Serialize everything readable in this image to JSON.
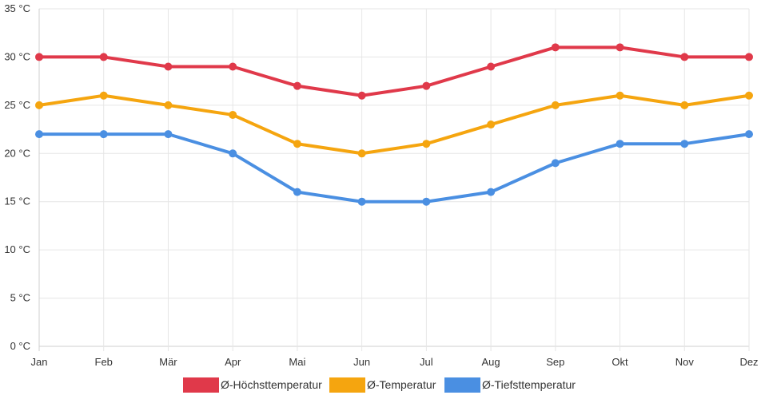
{
  "chart_data": {
    "type": "line",
    "title": "",
    "xlabel": "",
    "ylabel": "",
    "categories": [
      "Jan",
      "Feb",
      "Mär",
      "Apr",
      "Mai",
      "Jun",
      "Jul",
      "Aug",
      "Sep",
      "Okt",
      "Nov",
      "Dez"
    ],
    "ylim": [
      0,
      35
    ],
    "y_ticks": [
      0,
      5,
      10,
      15,
      20,
      25,
      30,
      35
    ],
    "y_tick_labels": [
      "0 °C",
      "5 °C",
      "10 °C",
      "15 °C",
      "20 °C",
      "25 °C",
      "30 °C",
      "35 °C"
    ],
    "grid": true,
    "legend_position": "bottom",
    "series": [
      {
        "name": "Ø-Höchsttemperatur",
        "color": "#e0394a",
        "values": [
          30,
          30,
          29,
          29,
          27,
          26,
          27,
          29,
          31,
          31,
          30,
          30
        ]
      },
      {
        "name": "Ø-Temperatur",
        "color": "#f5a50f",
        "values": [
          25,
          26,
          25,
          24,
          21,
          20,
          21,
          23,
          25,
          26,
          25,
          26
        ]
      },
      {
        "name": "Ø-Tiefsttemperatur",
        "color": "#4a8fe2",
        "values": [
          22,
          22,
          22,
          20,
          16,
          15,
          15,
          16,
          19,
          21,
          21,
          22
        ]
      }
    ]
  }
}
